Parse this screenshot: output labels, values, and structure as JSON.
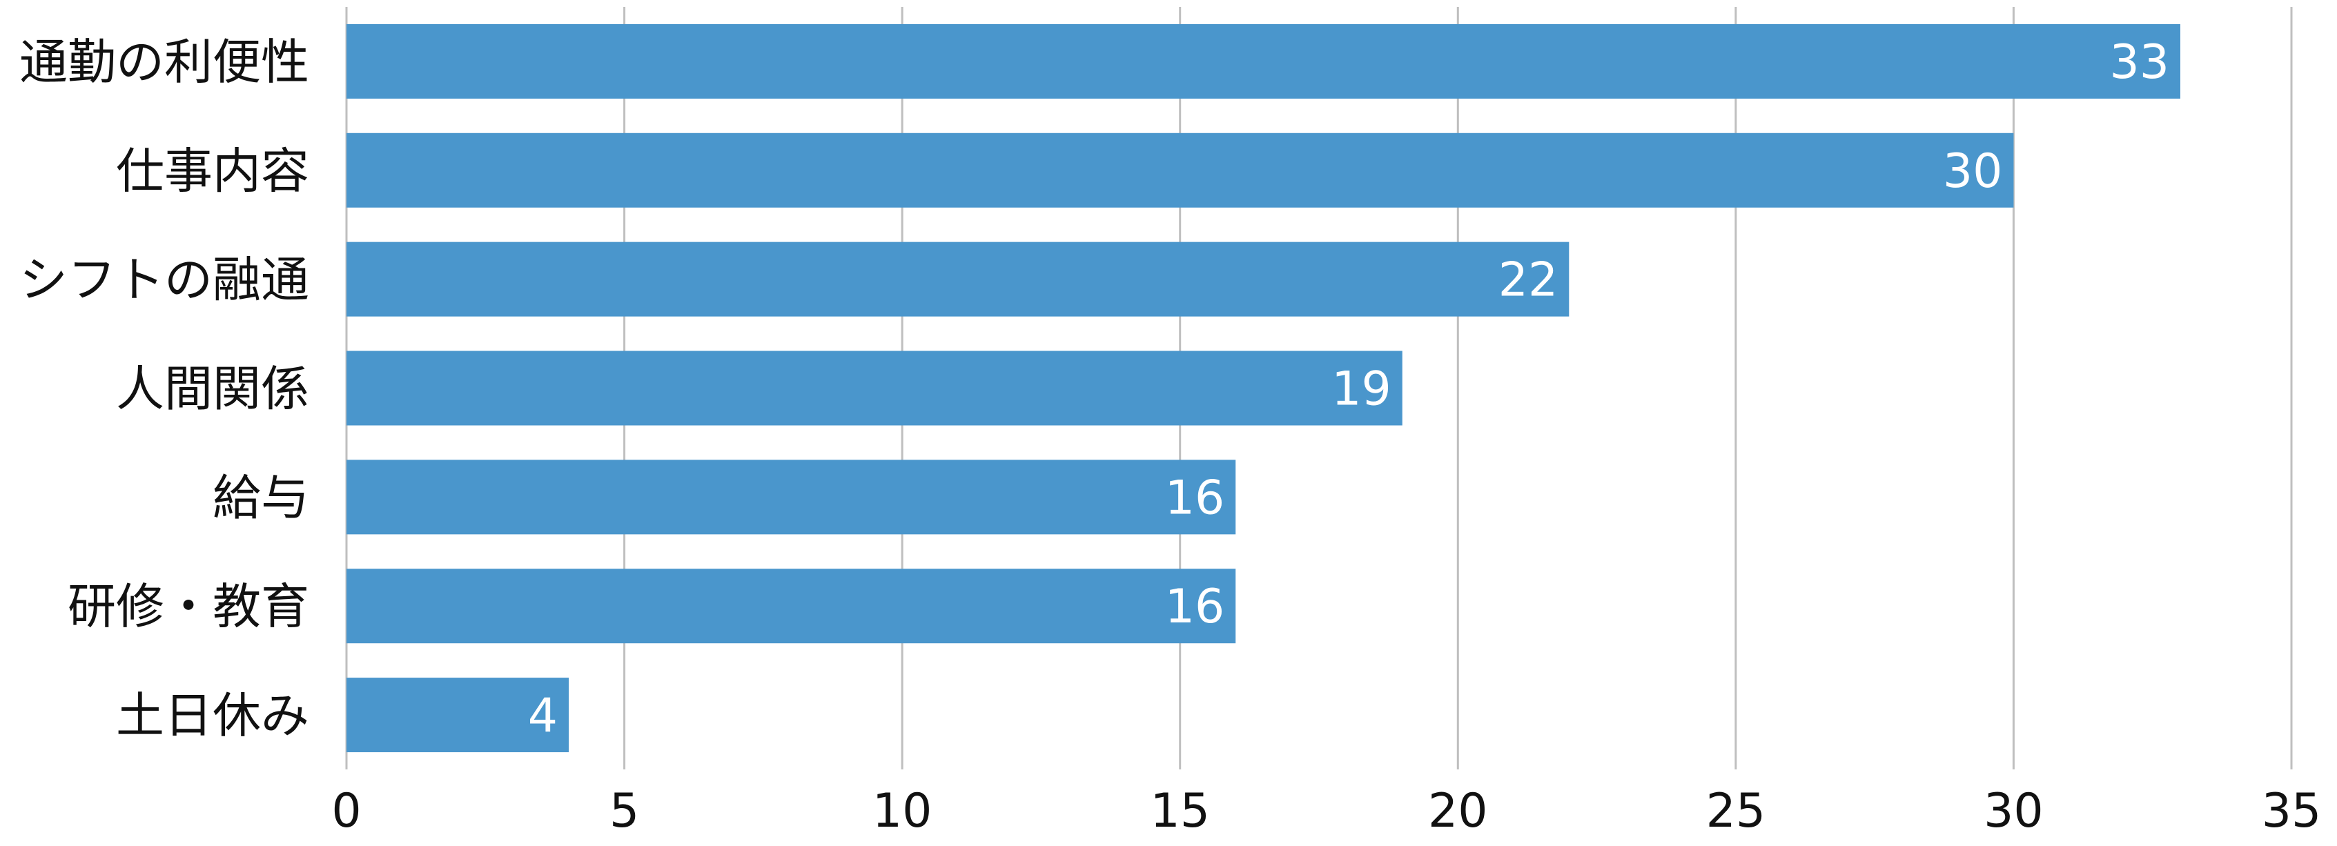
{
  "chart_data": {
    "type": "bar",
    "orientation": "horizontal",
    "categories": [
      "通勤の利便性",
      "仕事内容",
      "シフトの融通",
      "人間関係",
      "給与",
      "研修・教育",
      "土日休み"
    ],
    "values": [
      33,
      30,
      22,
      19,
      16,
      16,
      4
    ],
    "data_labels": [
      "33",
      "30",
      "22",
      "19",
      "16",
      "16",
      "4"
    ],
    "xlim": [
      0,
      35
    ],
    "x_ticks": [
      0,
      5,
      10,
      15,
      20,
      25,
      30,
      35
    ],
    "x_tick_labels": [
      "0",
      "5",
      "10",
      "15",
      "20",
      "25",
      "30",
      "35"
    ],
    "grid": "vertical",
    "legend": "none",
    "bar_color": "#4a96cc",
    "title": "",
    "xlabel": "",
    "ylabel": ""
  }
}
